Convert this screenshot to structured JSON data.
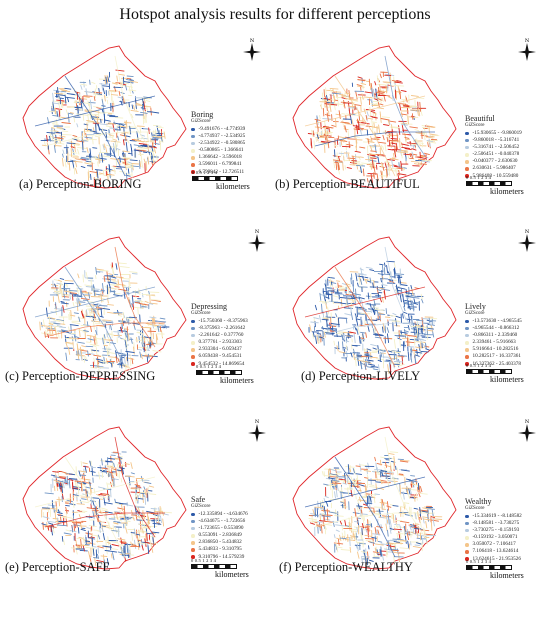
{
  "title": "Hotspot analysis results for different perceptions",
  "colors": [
    "#2c59a8",
    "#6f94c4",
    "#b7cbe0",
    "#f4f0c8",
    "#f4c58a",
    "#ea7446",
    "#d9261f"
  ],
  "scale": {
    "ticks": "0 0.5 1    2    3    4",
    "unit": "kilometers"
  },
  "north_label": "N",
  "legend_subtitle": "GiZScore",
  "panels": [
    {
      "id": "boring",
      "caption": "(a) Perception-BORING",
      "legend_title": "Boring",
      "classes": [
        "-9.491676 - -4.774939",
        "-4.774937 - -2.534925",
        "-2.534922 - -0.580865",
        "-0.580865 - 1.366641",
        "1.366642 - 3.596018",
        "3.596011 - 6.799841",
        "6.799842 - 12.726511"
      ],
      "weights": [
        0.9,
        0.3,
        0.3,
        1.1,
        0.9,
        0.25,
        0.15
      ]
    },
    {
      "id": "beautiful",
      "caption": "(b) Perception-BEAUTIFUL",
      "legend_title": "Beautiful",
      "classes": [
        "-15.930655 - -9.860019",
        "-9.860018 - -5.316741",
        "-5.316741 - -2.506452",
        "-2.506451 - -0.040378",
        "-0.040377 - 2.630630",
        "2.630631 - 5.986407",
        "5.986408 - 10.559480"
      ],
      "weights": [
        0.1,
        0.1,
        0.3,
        1.3,
        1.0,
        1.1,
        0.9
      ]
    },
    {
      "id": "depressing",
      "caption": "(c) Perception-DEPRESSING",
      "legend_title": "Depressing",
      "classes": [
        "-15.750360 - -8.375963",
        "-8.375963 - -2.261642",
        "-2.261642 - 0.377760",
        "0.377761 - 2.933303",
        "2.933304 - 6.059437",
        "6.059438 - 9.454531",
        "9.454532 - 14.869654"
      ],
      "weights": [
        0.6,
        0.9,
        0.5,
        1.3,
        0.9,
        0.35,
        0.1
      ]
    },
    {
      "id": "lively",
      "caption": "(d) Perception-LIVELY",
      "legend_title": "Lively",
      "classes": [
        "-13.573630 - -4.965545",
        "-4.965544 - -0.866312",
        "-0.866311 - 2.339460",
        "2.339461 - 5.916663",
        "5.916664 - 10.282516",
        "10.282517 - 16.337361",
        "16.337362 - 25.403378"
      ],
      "weights": [
        1.8,
        1.0,
        0.6,
        0.6,
        0.5,
        0.2,
        0.1
      ]
    },
    {
      "id": "safe",
      "caption": "(e) Perception-SAFE",
      "legend_title": "Safe",
      "classes": [
        "-12.335894 - -4.634676",
        "-4.634675 - -1.723656",
        "-1.723655 - 0.553090",
        "0.553091 - 2.836849",
        "2.836850 - 5.434832",
        "5.434833 - 9.310795",
        "9.310796 - 14.579239"
      ],
      "weights": [
        0.9,
        0.5,
        0.5,
        1.3,
        0.8,
        0.5,
        0.3
      ]
    },
    {
      "id": "wealthy",
      "caption": "(f) Perception-WEALTHY",
      "legend_title": "Wealthy",
      "classes": [
        "-15.334619 - -8.148582",
        "-8.148581 - -3.730275",
        "-3.730275 - -0.159193",
        "-0.159192 - 3.050071",
        "3.050072 - 7.106417",
        "7.106418 - 13.624614",
        "13.624615 - 21.953526"
      ],
      "weights": [
        0.6,
        0.6,
        0.6,
        1.3,
        0.8,
        0.5,
        0.25
      ]
    }
  ]
}
